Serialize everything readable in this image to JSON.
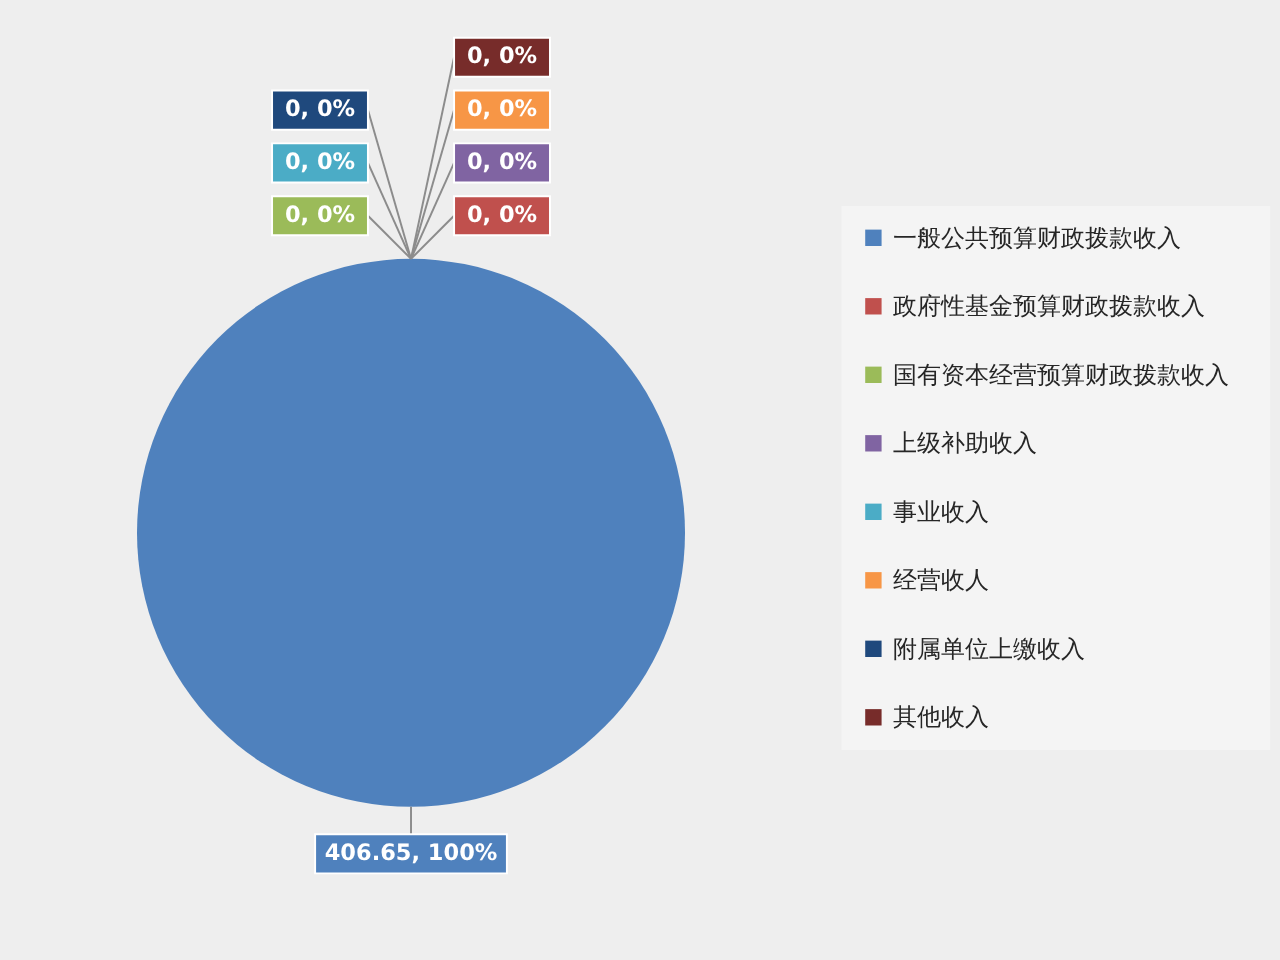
{
  "chart_data": {
    "type": "pie",
    "categories": [
      "一般公共预算财政拨款收入",
      "政府性基金预算财政拨款收入",
      "国有资本经营预算财政拨款收入",
      "上级补助收入",
      "事业收入",
      "经营收人",
      "附属单位上缴收入",
      "其他收入"
    ],
    "values": [
      406.65,
      0,
      0,
      0,
      0,
      0,
      0,
      0
    ],
    "colors": [
      "#4f81bd",
      "#c0504d",
      "#9bbb59",
      "#8064a2",
      "#4bacc6",
      "#f79646",
      "#1f497d",
      "#772c2a"
    ],
    "value_labels": [
      "406.65, 100%",
      "0, 0%",
      "0, 0%",
      "0, 0%",
      "0, 0%",
      "0, 0%",
      "0, 0%",
      "0, 0%"
    ],
    "legend": "right"
  }
}
